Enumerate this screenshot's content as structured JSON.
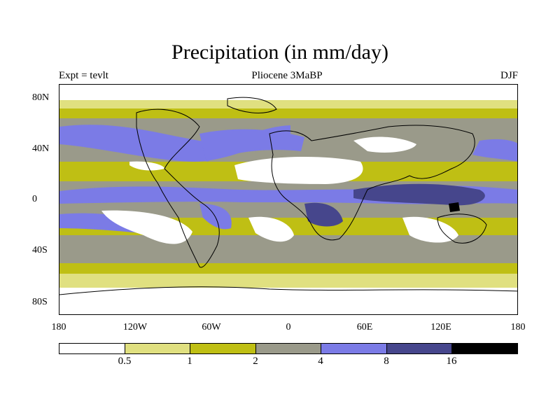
{
  "title": "Precipitation (in mm/day)",
  "subtitle_left": "Expt = tevlt",
  "subtitle_center": "Pliocene   3MaBP",
  "subtitle_right": "DJF",
  "y_ticks": [
    "80N",
    "40N",
    "0",
    "40S",
    "80S"
  ],
  "x_ticks": [
    "180",
    "120W",
    "60W",
    "0",
    "60E",
    "120E",
    "180"
  ],
  "colorbar": {
    "labels": [
      "0.5",
      "1",
      "2",
      "4",
      "8",
      "16"
    ],
    "colors": [
      "#ffffff",
      "#e0e080",
      "#bfbf14",
      "#9a9a8a",
      "#7b7be6",
      "#46468c",
      "#000000"
    ]
  },
  "chart_data": {
    "type": "heatmap",
    "title": "Precipitation (in mm/day)",
    "projection": "cylindrical-equidistant",
    "x_range": [
      -180,
      180
    ],
    "y_range": [
      -90,
      90
    ],
    "levels": [
      0.5,
      1,
      2,
      4,
      8,
      16
    ]
  }
}
